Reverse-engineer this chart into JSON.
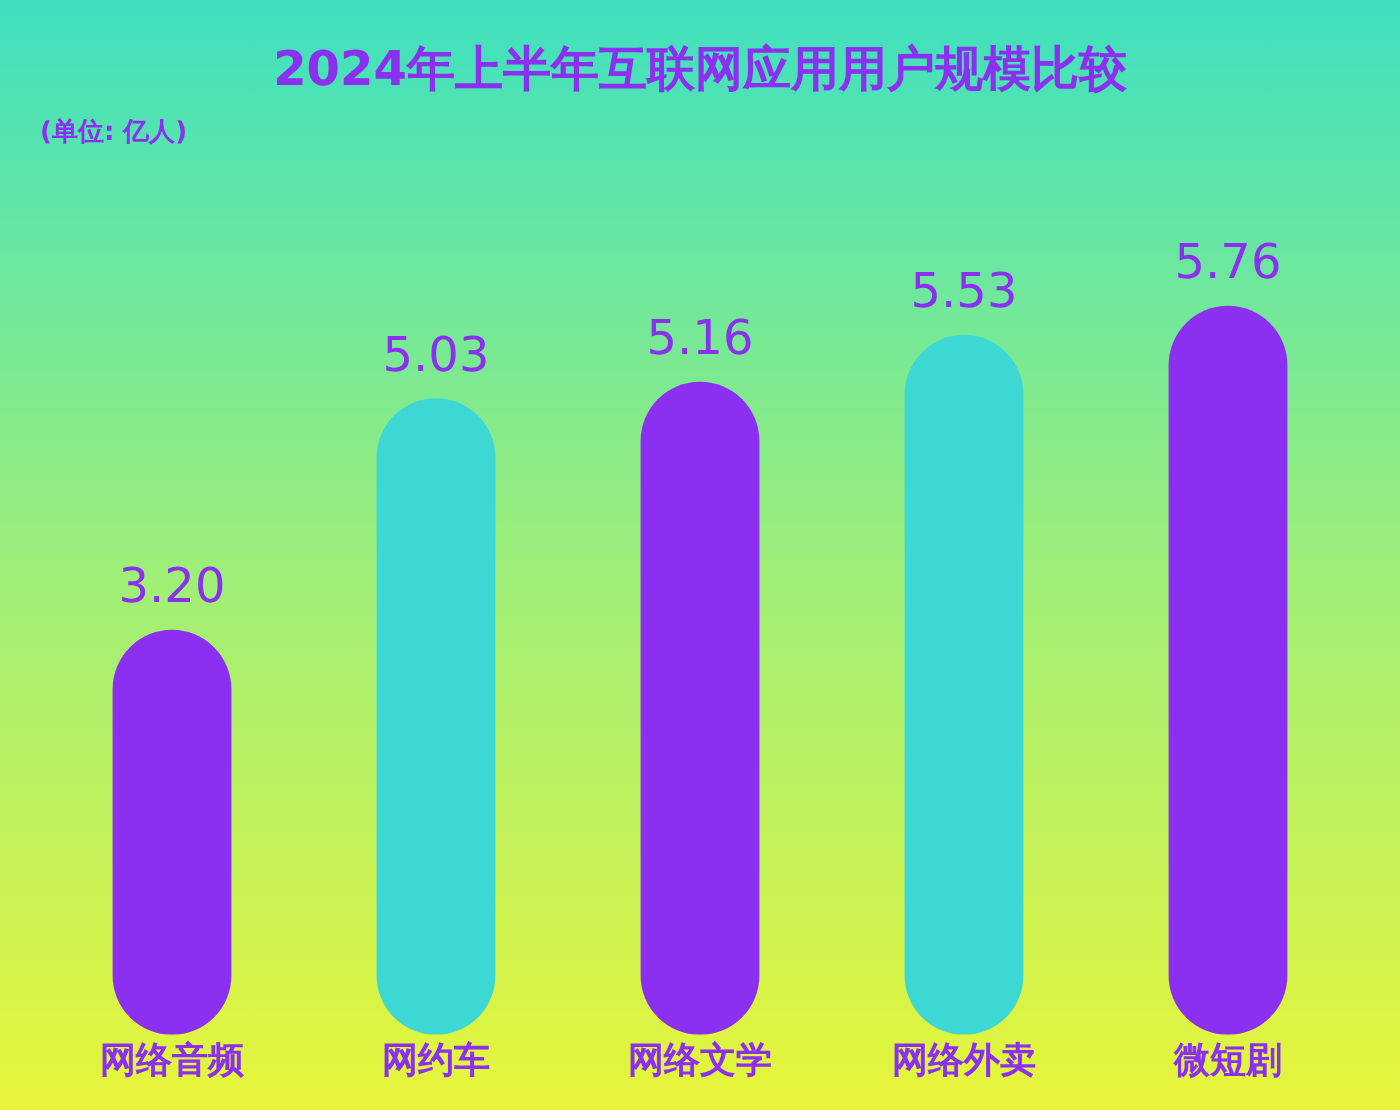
{
  "chart_data": {
    "type": "bar",
    "title": "2024年上半年互联网应用用户规模比较",
    "subtitle": "(单位: 亿人)",
    "categories": [
      "网络音频",
      "网约车",
      "网络文学",
      "网络外卖",
      "微短剧"
    ],
    "values": [
      3.2,
      5.03,
      5.16,
      5.53,
      5.76
    ],
    "colors": [
      "#8b2ff0",
      "#3ed8d4",
      "#8b2ff0",
      "#3ed8d4",
      "#8b2ff0"
    ],
    "value_labels": [
      "3.20",
      "5.03",
      "5.16",
      "5.53",
      "5.76"
    ],
    "grid": false,
    "legend": false
  }
}
